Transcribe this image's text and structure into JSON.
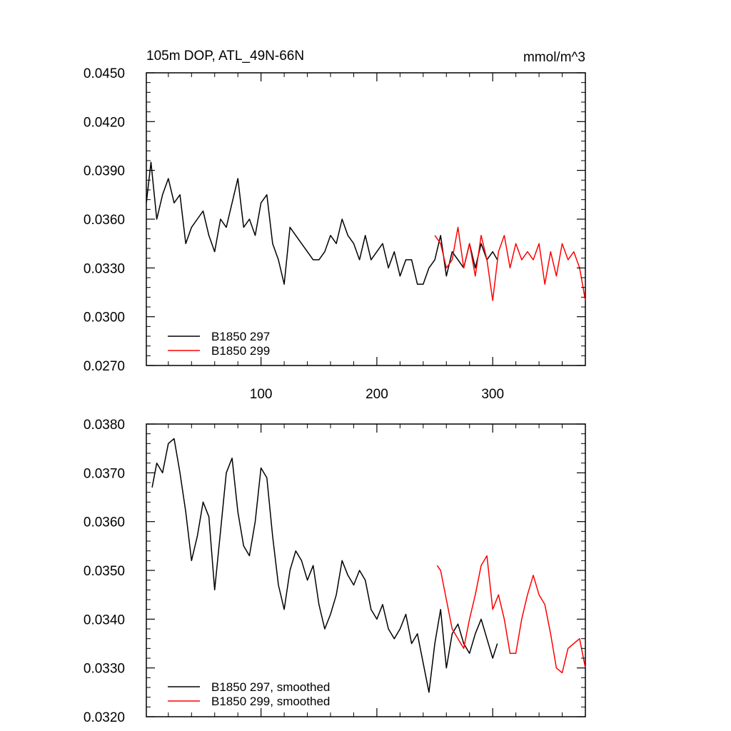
{
  "chart_data": [
    {
      "type": "line",
      "title": "105m DOP, ATL_49N-66N",
      "units_label": "mmol/m^3",
      "xlim": [
        1,
        380
      ],
      "ylim": [
        0.027,
        0.045
      ],
      "x_tick_labels": [
        "100",
        "200",
        "300"
      ],
      "x_ticks": [
        100,
        200,
        300
      ],
      "y_tick_labels": [
        "0.0270",
        "0.0300",
        "0.0330",
        "0.0360",
        "0.0390",
        "0.0420",
        "0.0450"
      ],
      "y_ticks": [
        0.027,
        0.03,
        0.033,
        0.036,
        0.039,
        0.042,
        0.045
      ],
      "legend": "bottom-left",
      "series": [
        {
          "name": "B1850 297",
          "color": "#000000",
          "x": [
            1,
            5,
            10,
            15,
            20,
            25,
            30,
            35,
            40,
            45,
            50,
            55,
            60,
            65,
            70,
            75,
            80,
            85,
            90,
            95,
            100,
            105,
            110,
            115,
            120,
            125,
            130,
            135,
            140,
            145,
            150,
            155,
            160,
            165,
            170,
            175,
            180,
            185,
            190,
            195,
            200,
            205,
            210,
            215,
            220,
            225,
            230,
            235,
            240,
            245,
            250,
            255,
            260,
            265,
            270,
            275,
            280,
            285,
            290,
            295,
            300,
            304
          ],
          "values": [
            0.037,
            0.0395,
            0.036,
            0.0375,
            0.0385,
            0.037,
            0.0375,
            0.0345,
            0.0355,
            0.036,
            0.0365,
            0.035,
            0.034,
            0.036,
            0.0355,
            0.037,
            0.0385,
            0.0355,
            0.036,
            0.035,
            0.037,
            0.0375,
            0.0345,
            0.0335,
            0.032,
            0.0355,
            0.035,
            0.0345,
            0.034,
            0.0335,
            0.0335,
            0.034,
            0.035,
            0.0345,
            0.036,
            0.035,
            0.0345,
            0.0335,
            0.035,
            0.0335,
            0.034,
            0.0345,
            0.033,
            0.034,
            0.0325,
            0.0335,
            0.0335,
            0.032,
            0.032,
            0.033,
            0.0335,
            0.035,
            0.0325,
            0.034,
            0.0335,
            0.033,
            0.0345,
            0.033,
            0.0345,
            0.0335,
            0.034,
            0.0335
          ]
        },
        {
          "name": "B1850 299",
          "color": "#ff0000",
          "x": [
            250,
            255,
            260,
            265,
            270,
            275,
            280,
            285,
            290,
            295,
            300,
            305,
            310,
            315,
            320,
            325,
            330,
            335,
            340,
            345,
            350,
            355,
            360,
            365,
            370,
            375,
            380
          ],
          "values": [
            0.035,
            0.0345,
            0.033,
            0.0335,
            0.0355,
            0.033,
            0.0345,
            0.0325,
            0.035,
            0.0335,
            0.031,
            0.034,
            0.035,
            0.033,
            0.0345,
            0.0335,
            0.034,
            0.0335,
            0.0345,
            0.032,
            0.034,
            0.0325,
            0.0345,
            0.0335,
            0.034,
            0.033,
            0.031
          ]
        }
      ]
    },
    {
      "type": "line",
      "title": "",
      "xlim": [
        1,
        380
      ],
      "ylim": [
        0.032,
        0.038
      ],
      "x_ticks": [
        100,
        200,
        300
      ],
      "y_tick_labels": [
        "0.0320",
        "0.0330",
        "0.0340",
        "0.0350",
        "0.0360",
        "0.0370",
        "0.0380"
      ],
      "y_ticks": [
        0.032,
        0.033,
        0.034,
        0.035,
        0.036,
        0.037,
        0.038
      ],
      "legend": "bottom-left",
      "series": [
        {
          "name": "B1850 297, smoothed",
          "color": "#000000",
          "x": [
            6,
            10,
            15,
            20,
            25,
            30,
            35,
            40,
            45,
            50,
            55,
            60,
            65,
            70,
            75,
            80,
            85,
            90,
            95,
            100,
            105,
            110,
            115,
            120,
            125,
            130,
            135,
            140,
            145,
            150,
            155,
            160,
            165,
            170,
            175,
            180,
            185,
            190,
            195,
            200,
            205,
            210,
            215,
            220,
            225,
            230,
            235,
            240,
            245,
            250,
            255,
            260,
            265,
            270,
            275,
            280,
            285,
            290,
            295,
            300,
            304
          ],
          "values": [
            0.0367,
            0.0372,
            0.037,
            0.0376,
            0.0377,
            0.037,
            0.0362,
            0.0352,
            0.0357,
            0.0364,
            0.0361,
            0.0346,
            0.0358,
            0.037,
            0.0373,
            0.0362,
            0.0355,
            0.0353,
            0.036,
            0.0371,
            0.0369,
            0.0357,
            0.0347,
            0.0342,
            0.035,
            0.0354,
            0.0352,
            0.0348,
            0.0351,
            0.0343,
            0.0338,
            0.0341,
            0.0345,
            0.0352,
            0.0349,
            0.0347,
            0.035,
            0.0348,
            0.0342,
            0.034,
            0.0343,
            0.0338,
            0.0336,
            0.0338,
            0.0341,
            0.0335,
            0.0337,
            0.0331,
            0.0325,
            0.0335,
            0.0342,
            0.033,
            0.0337,
            0.0339,
            0.0335,
            0.0333,
            0.0337,
            0.034,
            0.0336,
            0.0332,
            0.0335
          ]
        },
        {
          "name": "B1850 299, smoothed",
          "color": "#ff0000",
          "x": [
            252,
            255,
            260,
            265,
            270,
            275,
            280,
            285,
            290,
            295,
            300,
            305,
            310,
            315,
            320,
            325,
            330,
            335,
            340,
            345,
            350,
            355,
            360,
            365,
            370,
            375,
            380
          ],
          "values": [
            0.0351,
            0.035,
            0.0344,
            0.0338,
            0.0336,
            0.0334,
            0.034,
            0.0345,
            0.0351,
            0.0353,
            0.0342,
            0.0345,
            0.034,
            0.0333,
            0.0333,
            0.034,
            0.0345,
            0.0349,
            0.0345,
            0.0343,
            0.0337,
            0.033,
            0.0329,
            0.0334,
            0.0335,
            0.0336,
            0.033
          ]
        }
      ]
    }
  ]
}
